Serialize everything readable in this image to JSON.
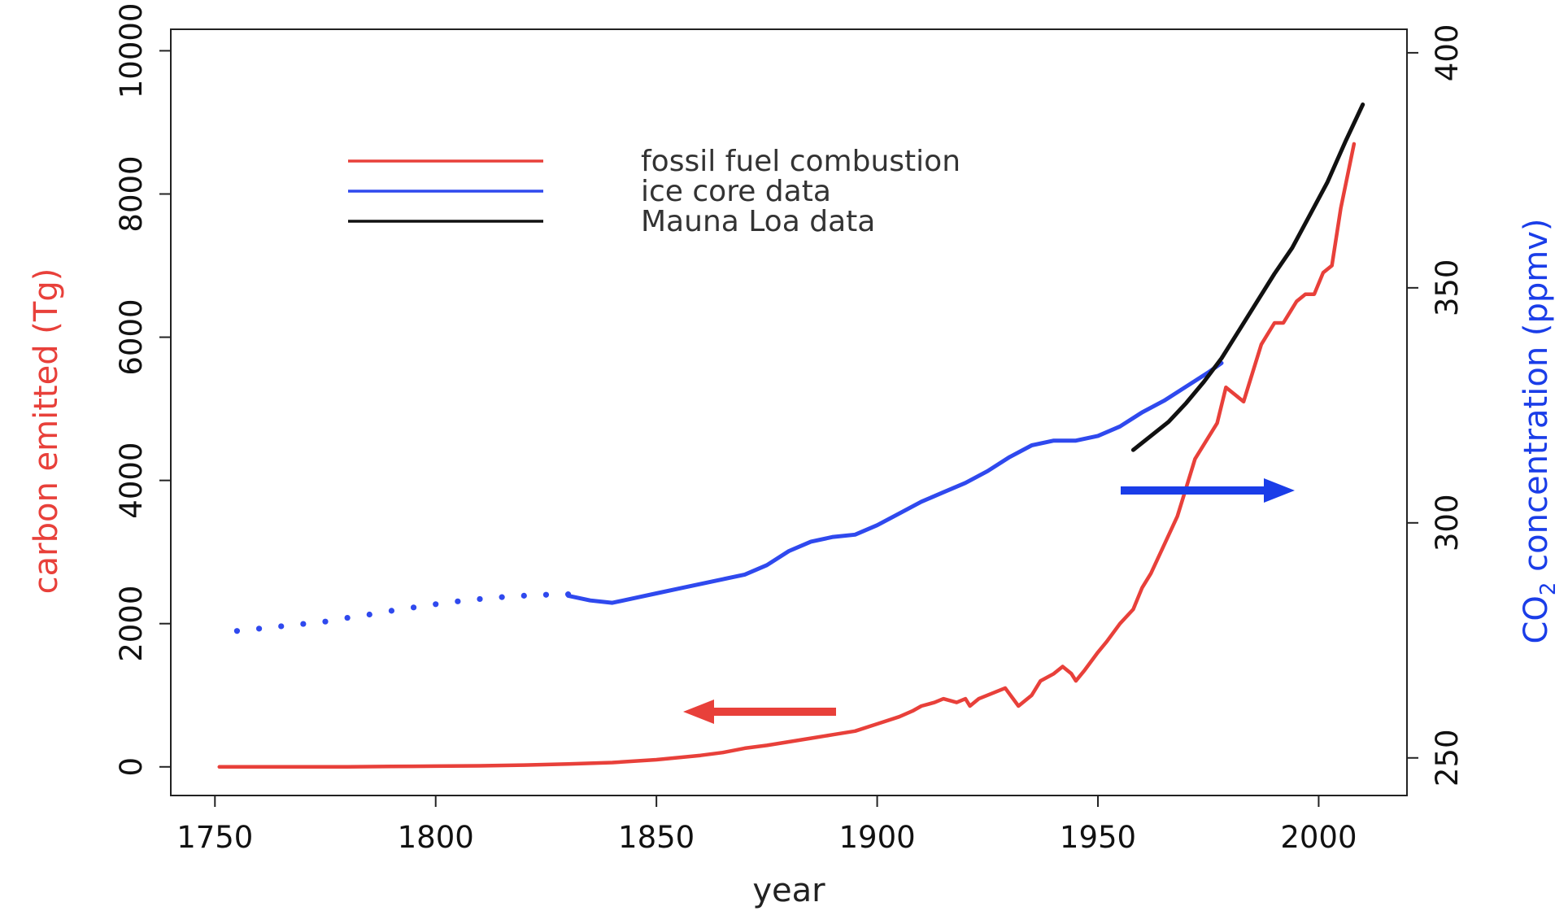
{
  "chart_data": {
    "type": "line",
    "xlabel": "year",
    "ylabel_left": "carbon emitted (Tg)",
    "ylabel_right_main": "CO",
    "ylabel_right_sub": "2",
    "ylabel_right_rest": " concentration (ppmv)",
    "xlim": [
      1740,
      2020
    ],
    "ylim_left": [
      -400,
      10300
    ],
    "ylim_right": [
      242,
      405
    ],
    "x_ticks": [
      1750,
      1800,
      1850,
      1900,
      1950,
      2000
    ],
    "x_tick_labels": [
      "1750",
      "1800",
      "1850",
      "1900",
      "1950",
      "2000"
    ],
    "y_left_ticks": [
      0,
      2000,
      4000,
      6000,
      8000,
      10000
    ],
    "y_left_tick_labels": [
      "0",
      "2000",
      "4000",
      "6000",
      "8000",
      "10000"
    ],
    "y_right_ticks": [
      250,
      300,
      350,
      400
    ],
    "y_right_tick_labels": [
      "250",
      "300",
      "350",
      "400"
    ],
    "legend": {
      "placement": "top-left",
      "entries": [
        {
          "label": "fossil fuel combustion",
          "color": "#e8403a"
        },
        {
          "label": "ice core data",
          "color": "#2f49ee"
        },
        {
          "label": "Mauna Loa data",
          "color": "#111111"
        }
      ]
    },
    "colors": {
      "left_axis": "#e8403a",
      "right_axis": "#1a3de8",
      "arrow_left": "#e8403a",
      "arrow_right": "#1a3de8"
    },
    "series": [
      {
        "name": "fossil fuel combustion",
        "axis": "left",
        "color": "#e8403a",
        "x": [
          1751,
          1760,
          1770,
          1780,
          1790,
          1800,
          1810,
          1820,
          1830,
          1840,
          1850,
          1860,
          1865,
          1870,
          1875,
          1880,
          1885,
          1890,
          1895,
          1900,
          1905,
          1908,
          1910,
          1913,
          1915,
          1918,
          1920,
          1921,
          1923,
          1925,
          1929,
          1932,
          1935,
          1937,
          1940,
          1942,
          1944,
          1945,
          1947,
          1950,
          1952,
          1955,
          1958,
          1960,
          1962,
          1965,
          1968,
          1970,
          1972,
          1975,
          1977,
          1979,
          1981,
          1983,
          1985,
          1987,
          1990,
          1992,
          1995,
          1997,
          1999,
          2001,
          2003,
          2005,
          2008
        ],
        "y": [
          0,
          0,
          0,
          0,
          5,
          10,
          15,
          25,
          40,
          60,
          100,
          160,
          200,
          260,
          300,
          350,
          400,
          450,
          500,
          600,
          700,
          780,
          850,
          900,
          950,
          900,
          950,
          850,
          950,
          1000,
          1100,
          850,
          1000,
          1200,
          1300,
          1400,
          1300,
          1200,
          1350,
          1600,
          1750,
          2000,
          2200,
          2500,
          2700,
          3100,
          3500,
          3900,
          4300,
          4600,
          4800,
          5300,
          5200,
          5100,
          5500,
          5900,
          6200,
          6200,
          6500,
          6600,
          6600,
          6900,
          7000,
          7800,
          8700
        ]
      },
      {
        "name": "ice core data",
        "axis": "right",
        "color": "#2f49ee",
        "x": [
          1830,
          1835,
          1840,
          1845,
          1850,
          1855,
          1860,
          1865,
          1870,
          1875,
          1880,
          1885,
          1890,
          1895,
          1900,
          1905,
          1910,
          1915,
          1920,
          1925,
          1930,
          1935,
          1940,
          1945,
          1950,
          1955,
          1960,
          1965,
          1970,
          1975,
          1978
        ],
        "y": [
          284.5,
          283.5,
          283.0,
          284.0,
          285.0,
          286.0,
          287.0,
          288.0,
          289.0,
          291.0,
          294.0,
          296.0,
          297.0,
          297.5,
          299.5,
          302.0,
          304.5,
          306.5,
          308.5,
          311.0,
          314.0,
          316.5,
          317.5,
          317.5,
          318.5,
          320.5,
          323.5,
          326.0,
          329.0,
          332.0,
          334.0
        ]
      },
      {
        "name": "ice core data (early)",
        "axis": "right",
        "color": "#2f49ee",
        "x": [
          1755,
          1760,
          1765,
          1770,
          1775,
          1780,
          1785,
          1790,
          1795,
          1800,
          1805,
          1810,
          1815,
          1820,
          1825,
          1830
        ],
        "y": [
          277.0,
          277.5,
          278.0,
          278.5,
          279.0,
          279.8,
          280.5,
          281.3,
          282.0,
          282.7,
          283.3,
          283.8,
          284.2,
          284.5,
          284.7,
          284.8
        ]
      },
      {
        "name": "Mauna Loa data",
        "axis": "right",
        "color": "#111111",
        "x": [
          1958,
          1962,
          1966,
          1970,
          1974,
          1978,
          1982,
          1986,
          1990,
          1994,
          1998,
          2002,
          2006,
          2010
        ],
        "y": [
          315.5,
          318.5,
          321.5,
          325.5,
          330.0,
          335.0,
          341.0,
          347.0,
          353.0,
          358.5,
          365.5,
          372.5,
          381.0,
          389.0
        ]
      }
    ]
  }
}
